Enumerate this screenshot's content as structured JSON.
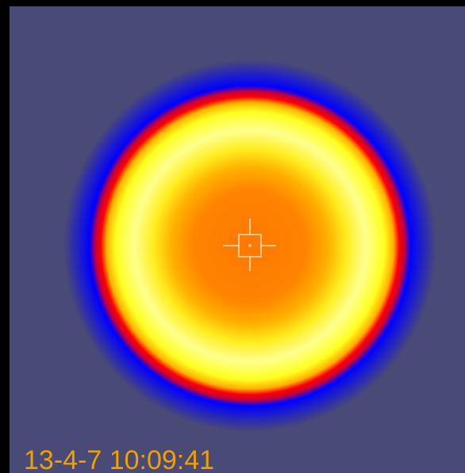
{
  "timestamp": "13-4-7 10:09:41"
}
